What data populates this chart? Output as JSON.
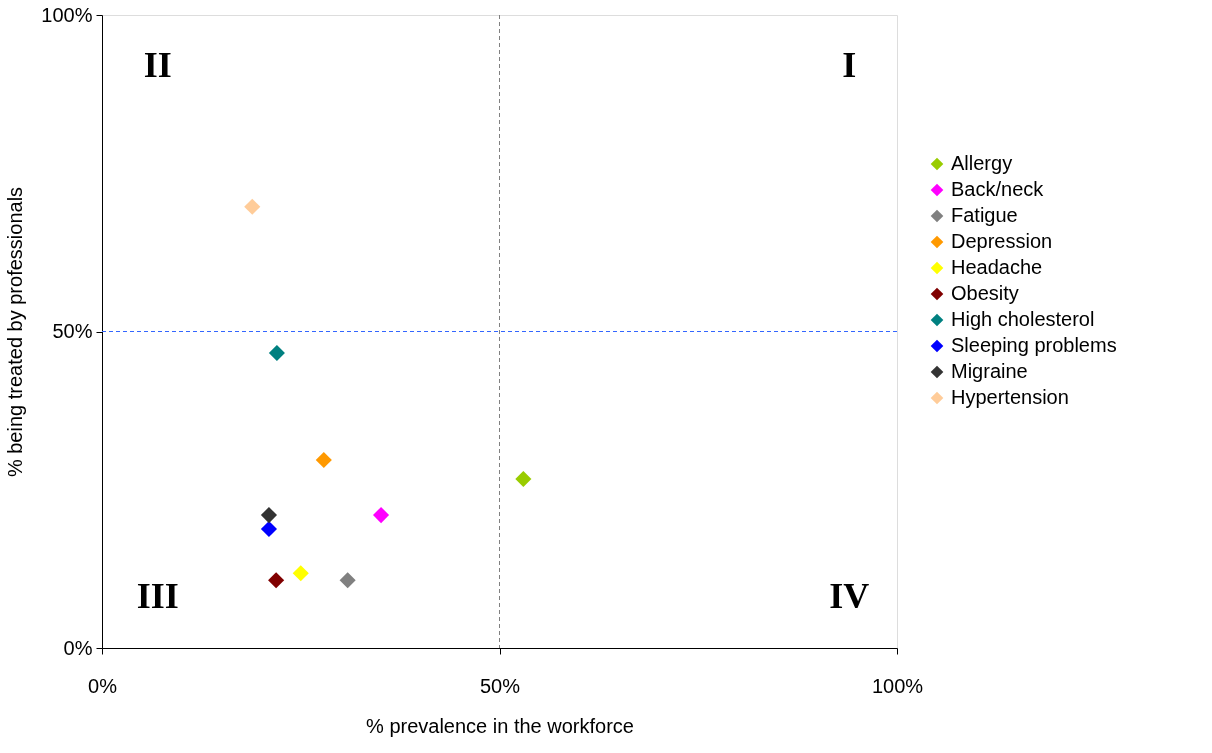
{
  "chart_data": {
    "type": "scatter",
    "xlabel": "% prevalence in the workforce",
    "ylabel": "% being treated by professionals",
    "xlim": [
      0,
      100
    ],
    "ylim": [
      0,
      100
    ],
    "xticks": [
      {
        "value": 0,
        "label": "0%"
      },
      {
        "value": 50,
        "label": "50%"
      },
      {
        "value": 100,
        "label": "100%"
      }
    ],
    "yticks": [
      {
        "value": 0,
        "label": "0%"
      },
      {
        "value": 50,
        "label": "50%"
      },
      {
        "value": 100,
        "label": "100%"
      }
    ],
    "grid": false,
    "legend": "right",
    "marker": "diamond",
    "series": [
      {
        "name": "Allergy",
        "color": "#99cc00",
        "x": [
          53.0
        ],
        "values": [
          26.7
        ]
      },
      {
        "name": "Back/neck",
        "color": "#ff00ff",
        "x": [
          35.1
        ],
        "values": [
          21.0
        ]
      },
      {
        "name": "Fatigue",
        "color": "#808080",
        "x": [
          30.9
        ],
        "values": [
          10.7
        ]
      },
      {
        "name": "Depression",
        "color": "#ff9900",
        "x": [
          27.9
        ],
        "values": [
          29.7
        ]
      },
      {
        "name": "Headache",
        "color": "#ffff00",
        "x": [
          25.0
        ],
        "values": [
          11.8
        ]
      },
      {
        "name": "Obesity",
        "color": "#800000",
        "x": [
          21.9
        ],
        "values": [
          10.7
        ]
      },
      {
        "name": "High cholesterol",
        "color": "#008080",
        "x": [
          22.0
        ],
        "values": [
          46.6
        ]
      },
      {
        "name": "Sleeping problems",
        "color": "#0000ff",
        "x": [
          21.0
        ],
        "values": [
          18.8
        ]
      },
      {
        "name": "Migraine",
        "color": "#333333",
        "x": [
          21.0
        ],
        "values": [
          21.0
        ]
      },
      {
        "name": "Hypertension",
        "color": "#ffcc99",
        "x": [
          18.9
        ],
        "values": [
          69.7
        ]
      }
    ],
    "ref_lines": [
      {
        "axis": "x",
        "value": 50,
        "color": "#808080",
        "line_style": "dashed"
      },
      {
        "axis": "y",
        "value": 50,
        "color": "#3366ff",
        "line_style": "dashed"
      }
    ],
    "annotations": [
      "II",
      "I",
      "III",
      "IV"
    ]
  }
}
